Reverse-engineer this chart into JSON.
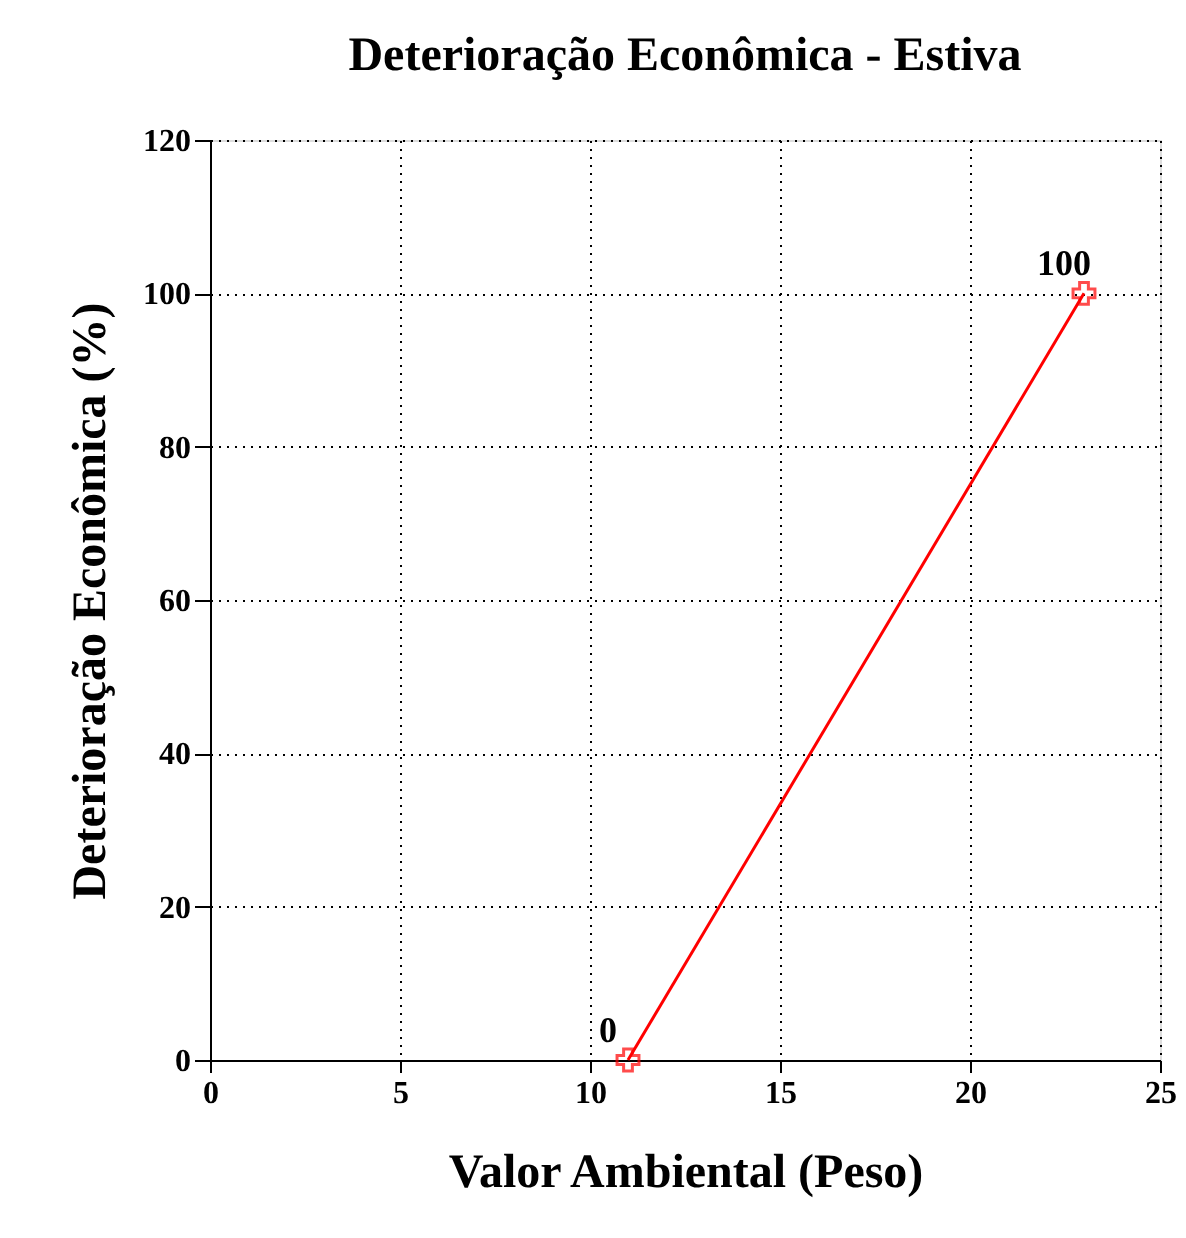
{
  "chart_data": {
    "type": "line",
    "title": "Deterioração Econômica - Estiva",
    "xlabel": "Valor Ambiental (Peso)",
    "ylabel": "Deterioração Econômica (%)",
    "x": [
      11,
      23
    ],
    "series": [
      {
        "color": "#ff0000",
        "values": [
          0,
          100
        ]
      }
    ],
    "xlim": [
      0,
      25
    ],
    "xticks": [
      0,
      5,
      10,
      15,
      20,
      25
    ],
    "ylim": [
      0,
      120
    ],
    "yticks": [
      0,
      20,
      40,
      60,
      80,
      100,
      120
    ],
    "grid": true,
    "marker": "cross",
    "line_style": "solid",
    "data_labels": true
  }
}
